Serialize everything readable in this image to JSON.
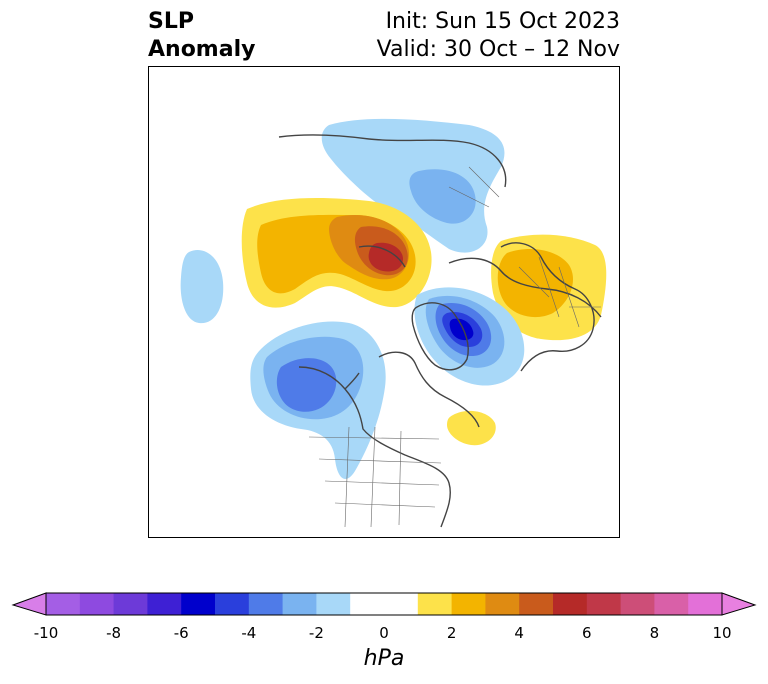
{
  "header": {
    "title_line1": "SLP",
    "title_line2": "Anomaly",
    "init": "Init: Sun 15 Oct 2023",
    "valid": "Valid: 30 Oct – 12 Nov"
  },
  "colorbar": {
    "unit": "hPa",
    "ticks": [
      "-10",
      "-8",
      "-6",
      "-4",
      "-2",
      "0",
      "2",
      "4",
      "6",
      "8",
      "10"
    ],
    "tick_values": [
      -10,
      -8,
      -6,
      -4,
      -2,
      0,
      2,
      4,
      6,
      8,
      10
    ],
    "min": -10,
    "max": 10,
    "bins": [
      {
        "from": -10,
        "to": -9,
        "color": "#a45ee5"
      },
      {
        "from": -9,
        "to": -8,
        "color": "#8e4ae0"
      },
      {
        "from": -8,
        "to": -7,
        "color": "#6d3ad8"
      },
      {
        "from": -7,
        "to": -6,
        "color": "#3e20d4"
      },
      {
        "from": -6,
        "to": -5,
        "color": "#0000cc"
      },
      {
        "from": -5,
        "to": -4,
        "color": "#2a3fdc"
      },
      {
        "from": -4,
        "to": -3,
        "color": "#4f7be8"
      },
      {
        "from": -3,
        "to": -2,
        "color": "#7ab3f0"
      },
      {
        "from": -2,
        "to": -1,
        "color": "#a8d8f8"
      },
      {
        "from": -1,
        "to": 1,
        "color": "#ffffff"
      },
      {
        "from": 1,
        "to": 2,
        "color": "#fde24a"
      },
      {
        "from": 2,
        "to": 3,
        "color": "#f3b400"
      },
      {
        "from": 3,
        "to": 4,
        "color": "#df8b12"
      },
      {
        "from": 4,
        "to": 5,
        "color": "#c95b1c"
      },
      {
        "from": 5,
        "to": 6,
        "color": "#b52a28"
      },
      {
        "from": 6,
        "to": 7,
        "color": "#c03848"
      },
      {
        "from": 7,
        "to": 8,
        "color": "#cd4e78"
      },
      {
        "from": 8,
        "to": 9,
        "color": "#d960a8"
      },
      {
        "from": 9,
        "to": 10,
        "color": "#e370d8"
      }
    ],
    "extend_low_color": "#d87ee8",
    "extend_high_color": "#e880e0"
  }
}
